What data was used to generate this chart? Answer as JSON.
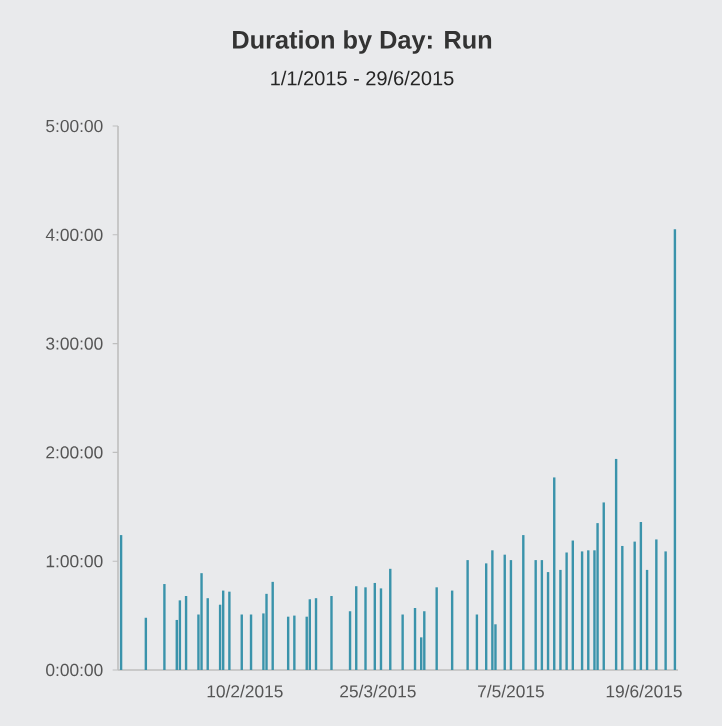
{
  "chart_data": {
    "type": "bar",
    "title": "Duration by Day: Run",
    "subtitle": "1/1/2015 - 29/6/2015",
    "x": [
      "2015-01-01",
      "2015-01-09",
      "2015-01-15",
      "2015-01-19",
      "2015-01-20",
      "2015-01-22",
      "2015-01-26",
      "2015-01-27",
      "2015-01-29",
      "2015-02-02",
      "2015-02-03",
      "2015-02-05",
      "2015-02-09",
      "2015-02-12",
      "2015-02-16",
      "2015-02-17",
      "2015-02-19",
      "2015-02-24",
      "2015-02-26",
      "2015-03-02",
      "2015-03-03",
      "2015-03-05",
      "2015-03-10",
      "2015-03-16",
      "2015-03-18",
      "2015-03-21",
      "2015-03-24",
      "2015-03-26",
      "2015-03-29",
      "2015-04-02",
      "2015-04-06",
      "2015-04-08",
      "2015-04-09",
      "2015-04-13",
      "2015-04-18",
      "2015-04-23",
      "2015-04-26",
      "2015-04-29",
      "2015-05-01",
      "2015-05-02",
      "2015-05-05",
      "2015-05-07",
      "2015-05-11",
      "2015-05-15",
      "2015-05-17",
      "2015-05-19",
      "2015-05-21",
      "2015-05-23",
      "2015-05-25",
      "2015-05-27",
      "2015-05-30",
      "2015-06-01",
      "2015-06-03",
      "2015-06-04",
      "2015-06-06",
      "2015-06-10",
      "2015-06-12",
      "2015-06-16",
      "2015-06-18",
      "2015-06-20",
      "2015-06-23",
      "2015-06-26",
      "2015-06-29"
    ],
    "values": [
      1.24,
      0.48,
      0.79,
      0.46,
      0.64,
      0.68,
      0.51,
      0.89,
      0.66,
      0.6,
      0.73,
      0.72,
      0.51,
      0.51,
      0.52,
      0.7,
      0.81,
      0.49,
      0.5,
      0.49,
      0.65,
      0.66,
      0.68,
      0.54,
      0.77,
      0.76,
      0.8,
      0.75,
      0.93,
      0.51,
      0.57,
      0.3,
      0.54,
      0.76,
      0.73,
      1.01,
      0.51,
      0.98,
      1.1,
      0.42,
      1.06,
      1.01,
      1.24,
      1.01,
      1.01,
      0.9,
      1.77,
      0.92,
      1.08,
      1.19,
      1.09,
      1.1,
      1.1,
      1.35,
      1.54,
      1.94,
      1.14,
      1.18,
      1.36,
      0.92,
      1.2,
      1.09,
      4.05
    ],
    "color": "#3a93ab",
    "xlim": [
      "2014-12-31",
      "2015-06-30"
    ],
    "xticks": [
      {
        "value": "2015-02-10",
        "label": "10/2/2015"
      },
      {
        "value": "2015-03-25",
        "label": "25/3/2015"
      },
      {
        "value": "2015-05-07",
        "label": "7/5/2015"
      },
      {
        "value": "2015-06-19",
        "label": "19/6/2015"
      }
    ],
    "ylim": [
      0,
      5
    ],
    "yticks": [
      {
        "value": 0,
        "label": "0:00:00"
      },
      {
        "value": 1,
        "label": "1:00:00"
      },
      {
        "value": 2,
        "label": "2:00:00"
      },
      {
        "value": 3,
        "label": "3:00:00"
      },
      {
        "value": 4,
        "label": "4:00:00"
      },
      {
        "value": 5,
        "label": "5:00:00"
      }
    ]
  }
}
